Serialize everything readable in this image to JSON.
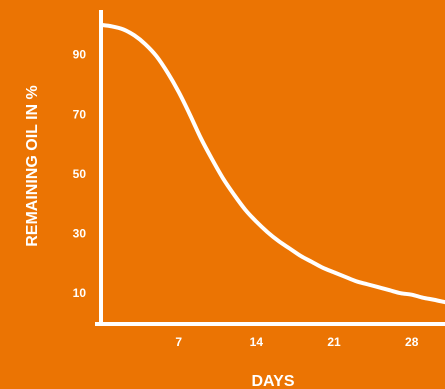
{
  "chart_data": {
    "type": "line",
    "title": "",
    "xlabel": "DAYS",
    "ylabel": "REMAINING OIL IN %",
    "x_ticks": [
      "7",
      "14",
      "21",
      "28"
    ],
    "y_ticks": [
      "10",
      "30",
      "50",
      "70",
      "90"
    ],
    "xlim": [
      0,
      31
    ],
    "ylim": [
      0,
      105
    ],
    "grid": false,
    "series": [
      {
        "x": [
          0,
          1,
          2,
          3,
          4,
          5,
          6,
          7,
          8,
          9,
          10,
          11,
          12,
          13,
          14,
          15,
          16,
          17,
          18,
          19,
          20,
          21,
          22,
          23,
          24,
          25,
          26,
          27,
          28,
          29,
          30,
          31
        ],
        "values": [
          100,
          99.5,
          98.5,
          96.5,
          93.5,
          89.5,
          84,
          77.5,
          70,
          62,
          55,
          48.5,
          43,
          38,
          34,
          30.5,
          27.5,
          25,
          22.5,
          20.5,
          18.5,
          17,
          15.5,
          14,
          13,
          12,
          11,
          10,
          9.5,
          8.5,
          7.8,
          7
        ]
      }
    ]
  },
  "colors": {
    "background": "#EB7403",
    "foreground": "#FFFFFF"
  }
}
